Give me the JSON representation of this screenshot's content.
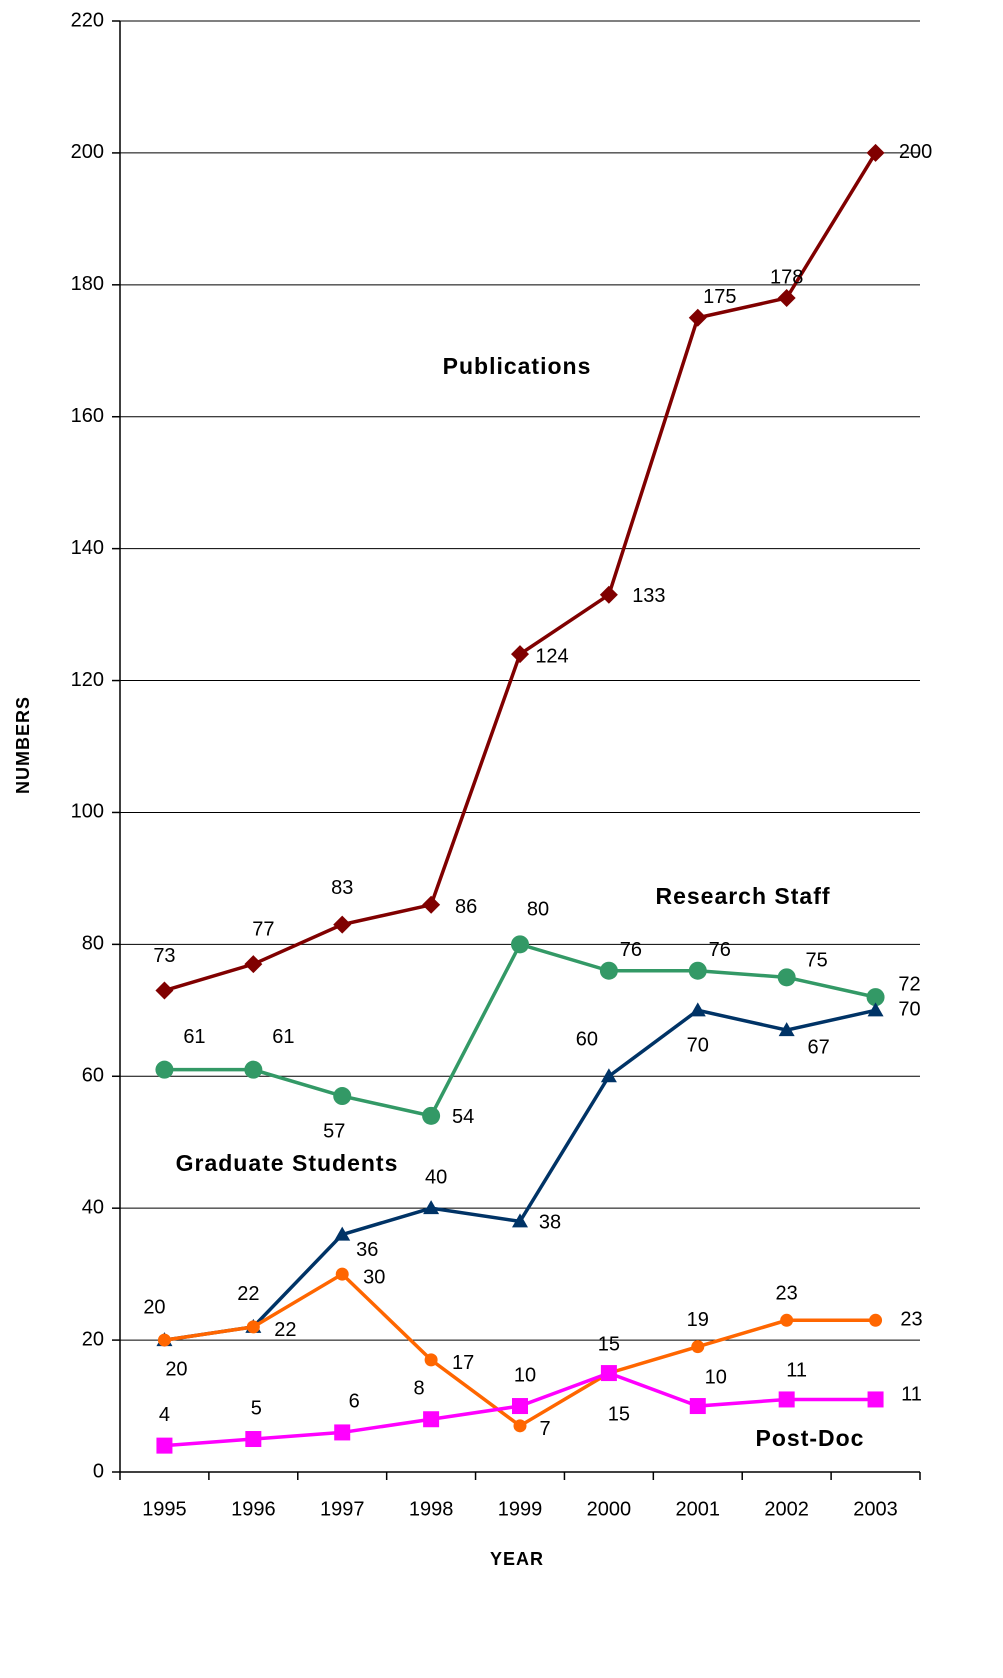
{
  "chart_data": {
    "type": "line",
    "x_label": "YEAR",
    "y_label": "NUMBERS",
    "categories": [
      "1995",
      "1996",
      "1997",
      "1998",
      "1999",
      "2000",
      "2001",
      "2002",
      "2003"
    ],
    "ylim": [
      0,
      220
    ],
    "yticks": [
      0,
      20,
      40,
      60,
      80,
      100,
      120,
      140,
      160,
      180,
      200,
      220
    ],
    "grid": true,
    "series": [
      {
        "name": "Publications",
        "color": "#800000",
        "marker": "diamond",
        "values": [
          73,
          77,
          83,
          86,
          124,
          133,
          175,
          178,
          200
        ]
      },
      {
        "name": "Research Staff",
        "color": "#339966",
        "label_color": "#339933",
        "marker": "circle",
        "values": [
          61,
          61,
          57,
          54,
          80,
          76,
          76,
          75,
          72
        ]
      },
      {
        "name": "Graduate Students",
        "color": "#003366",
        "marker": "triangle",
        "values": [
          20,
          22,
          36,
          40,
          38,
          60,
          70,
          67,
          70
        ]
      },
      {
        "color": "#ff6600",
        "marker": "small-circle",
        "values": [
          20,
          22,
          30,
          17,
          7,
          15,
          19,
          23,
          23
        ]
      },
      {
        "name": "Post-Doc",
        "color": "#ff00ff",
        "marker": "square",
        "values": [
          4,
          5,
          6,
          8,
          10,
          15,
          10,
          11,
          11
        ]
      }
    ]
  }
}
